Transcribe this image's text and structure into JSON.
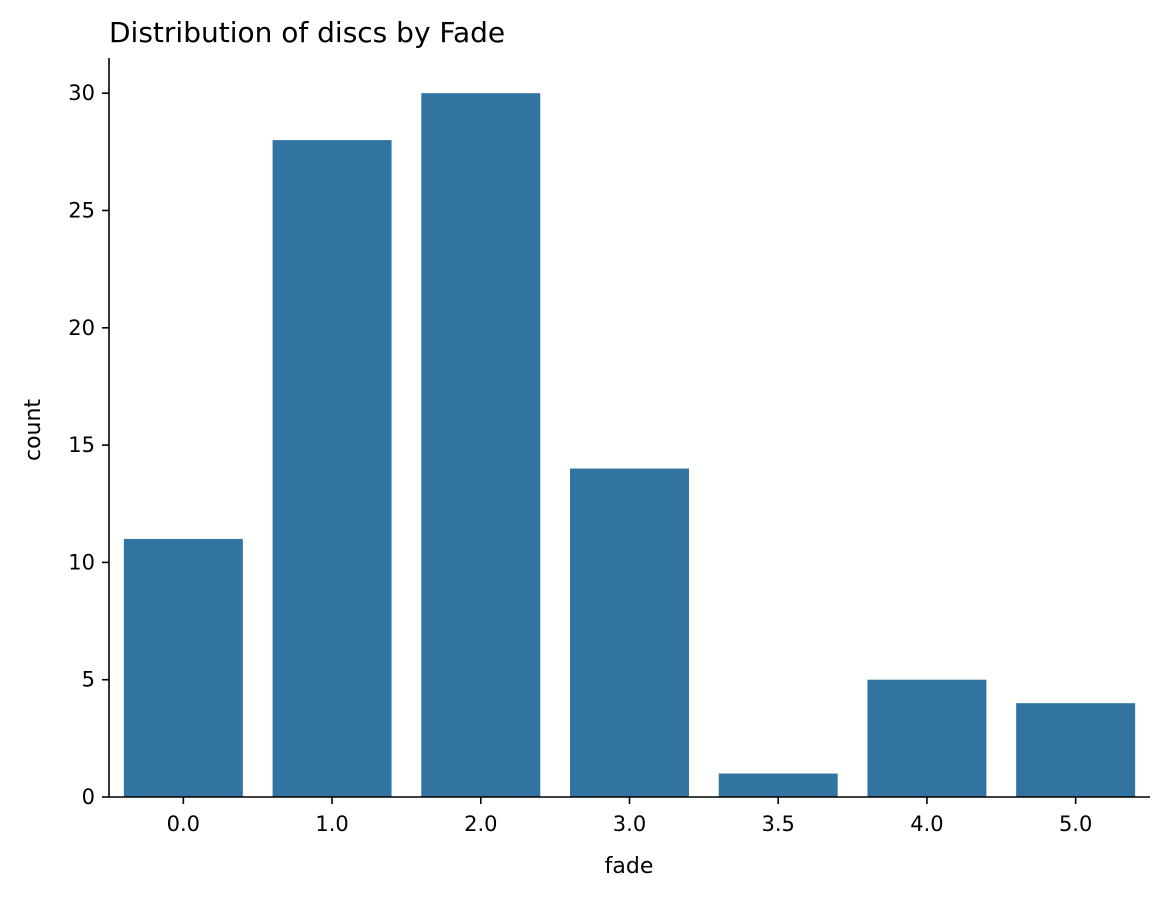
{
  "chart_data": {
    "type": "bar",
    "title": "Distribution of discs by Fade",
    "xlabel": "fade",
    "ylabel": "count",
    "categories": [
      "0.0",
      "1.0",
      "2.0",
      "3.0",
      "3.5",
      "4.0",
      "5.0"
    ],
    "values": [
      11,
      28,
      30,
      14,
      1,
      5,
      4
    ],
    "ylim": [
      0,
      31.5
    ],
    "yticks": [
      0,
      5,
      10,
      15,
      20,
      25,
      30
    ],
    "grid": false,
    "legend": "none",
    "bar_color": "#3274a1"
  }
}
